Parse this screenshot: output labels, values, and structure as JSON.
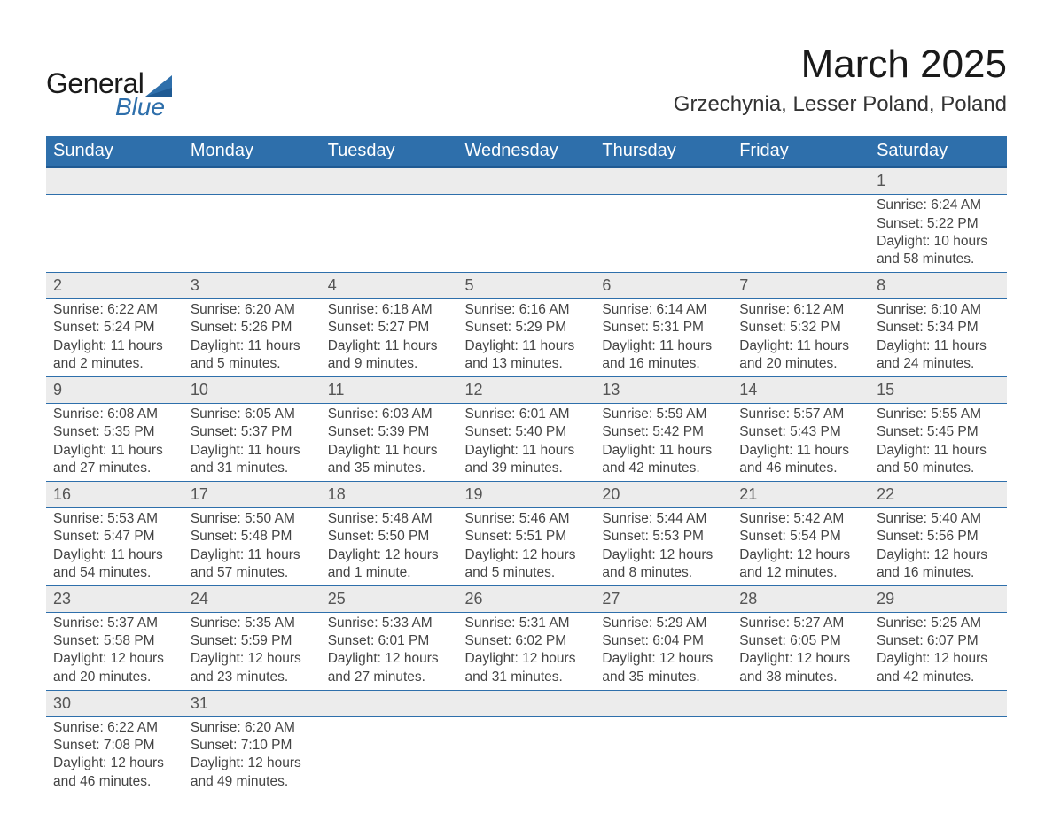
{
  "logo": {
    "word1": "General",
    "word2": "Blue",
    "sail_color": "#2e6fab",
    "text_color": "#1a1a1a"
  },
  "title": {
    "month": "March 2025",
    "location": "Grzechynia, Lesser Poland, Poland"
  },
  "colors": {
    "header_bg": "#2e6fab",
    "header_text": "#ffffff",
    "daynum_bg": "#ececec",
    "row_border": "#2e6fab",
    "body_text": "#444444"
  },
  "typography": {
    "month_fontsize": 44,
    "location_fontsize": 24,
    "dayheader_fontsize": 20,
    "daynum_fontsize": 18,
    "daytext_fontsize": 15.5
  },
  "calendar": {
    "day_headers": [
      "Sunday",
      "Monday",
      "Tuesday",
      "Wednesday",
      "Thursday",
      "Friday",
      "Saturday"
    ],
    "weeks": [
      [
        null,
        null,
        null,
        null,
        null,
        null,
        {
          "n": "1",
          "sunrise": "Sunrise: 6:24 AM",
          "sunset": "Sunset: 5:22 PM",
          "day1": "Daylight: 10 hours",
          "day2": "and 58 minutes."
        }
      ],
      [
        {
          "n": "2",
          "sunrise": "Sunrise: 6:22 AM",
          "sunset": "Sunset: 5:24 PM",
          "day1": "Daylight: 11 hours",
          "day2": "and 2 minutes."
        },
        {
          "n": "3",
          "sunrise": "Sunrise: 6:20 AM",
          "sunset": "Sunset: 5:26 PM",
          "day1": "Daylight: 11 hours",
          "day2": "and 5 minutes."
        },
        {
          "n": "4",
          "sunrise": "Sunrise: 6:18 AM",
          "sunset": "Sunset: 5:27 PM",
          "day1": "Daylight: 11 hours",
          "day2": "and 9 minutes."
        },
        {
          "n": "5",
          "sunrise": "Sunrise: 6:16 AM",
          "sunset": "Sunset: 5:29 PM",
          "day1": "Daylight: 11 hours",
          "day2": "and 13 minutes."
        },
        {
          "n": "6",
          "sunrise": "Sunrise: 6:14 AM",
          "sunset": "Sunset: 5:31 PM",
          "day1": "Daylight: 11 hours",
          "day2": "and 16 minutes."
        },
        {
          "n": "7",
          "sunrise": "Sunrise: 6:12 AM",
          "sunset": "Sunset: 5:32 PM",
          "day1": "Daylight: 11 hours",
          "day2": "and 20 minutes."
        },
        {
          "n": "8",
          "sunrise": "Sunrise: 6:10 AM",
          "sunset": "Sunset: 5:34 PM",
          "day1": "Daylight: 11 hours",
          "day2": "and 24 minutes."
        }
      ],
      [
        {
          "n": "9",
          "sunrise": "Sunrise: 6:08 AM",
          "sunset": "Sunset: 5:35 PM",
          "day1": "Daylight: 11 hours",
          "day2": "and 27 minutes."
        },
        {
          "n": "10",
          "sunrise": "Sunrise: 6:05 AM",
          "sunset": "Sunset: 5:37 PM",
          "day1": "Daylight: 11 hours",
          "day2": "and 31 minutes."
        },
        {
          "n": "11",
          "sunrise": "Sunrise: 6:03 AM",
          "sunset": "Sunset: 5:39 PM",
          "day1": "Daylight: 11 hours",
          "day2": "and 35 minutes."
        },
        {
          "n": "12",
          "sunrise": "Sunrise: 6:01 AM",
          "sunset": "Sunset: 5:40 PM",
          "day1": "Daylight: 11 hours",
          "day2": "and 39 minutes."
        },
        {
          "n": "13",
          "sunrise": "Sunrise: 5:59 AM",
          "sunset": "Sunset: 5:42 PM",
          "day1": "Daylight: 11 hours",
          "day2": "and 42 minutes."
        },
        {
          "n": "14",
          "sunrise": "Sunrise: 5:57 AM",
          "sunset": "Sunset: 5:43 PM",
          "day1": "Daylight: 11 hours",
          "day2": "and 46 minutes."
        },
        {
          "n": "15",
          "sunrise": "Sunrise: 5:55 AM",
          "sunset": "Sunset: 5:45 PM",
          "day1": "Daylight: 11 hours",
          "day2": "and 50 minutes."
        }
      ],
      [
        {
          "n": "16",
          "sunrise": "Sunrise: 5:53 AM",
          "sunset": "Sunset: 5:47 PM",
          "day1": "Daylight: 11 hours",
          "day2": "and 54 minutes."
        },
        {
          "n": "17",
          "sunrise": "Sunrise: 5:50 AM",
          "sunset": "Sunset: 5:48 PM",
          "day1": "Daylight: 11 hours",
          "day2": "and 57 minutes."
        },
        {
          "n": "18",
          "sunrise": "Sunrise: 5:48 AM",
          "sunset": "Sunset: 5:50 PM",
          "day1": "Daylight: 12 hours",
          "day2": "and 1 minute."
        },
        {
          "n": "19",
          "sunrise": "Sunrise: 5:46 AM",
          "sunset": "Sunset: 5:51 PM",
          "day1": "Daylight: 12 hours",
          "day2": "and 5 minutes."
        },
        {
          "n": "20",
          "sunrise": "Sunrise: 5:44 AM",
          "sunset": "Sunset: 5:53 PM",
          "day1": "Daylight: 12 hours",
          "day2": "and 8 minutes."
        },
        {
          "n": "21",
          "sunrise": "Sunrise: 5:42 AM",
          "sunset": "Sunset: 5:54 PM",
          "day1": "Daylight: 12 hours",
          "day2": "and 12 minutes."
        },
        {
          "n": "22",
          "sunrise": "Sunrise: 5:40 AM",
          "sunset": "Sunset: 5:56 PM",
          "day1": "Daylight: 12 hours",
          "day2": "and 16 minutes."
        }
      ],
      [
        {
          "n": "23",
          "sunrise": "Sunrise: 5:37 AM",
          "sunset": "Sunset: 5:58 PM",
          "day1": "Daylight: 12 hours",
          "day2": "and 20 minutes."
        },
        {
          "n": "24",
          "sunrise": "Sunrise: 5:35 AM",
          "sunset": "Sunset: 5:59 PM",
          "day1": "Daylight: 12 hours",
          "day2": "and 23 minutes."
        },
        {
          "n": "25",
          "sunrise": "Sunrise: 5:33 AM",
          "sunset": "Sunset: 6:01 PM",
          "day1": "Daylight: 12 hours",
          "day2": "and 27 minutes."
        },
        {
          "n": "26",
          "sunrise": "Sunrise: 5:31 AM",
          "sunset": "Sunset: 6:02 PM",
          "day1": "Daylight: 12 hours",
          "day2": "and 31 minutes."
        },
        {
          "n": "27",
          "sunrise": "Sunrise: 5:29 AM",
          "sunset": "Sunset: 6:04 PM",
          "day1": "Daylight: 12 hours",
          "day2": "and 35 minutes."
        },
        {
          "n": "28",
          "sunrise": "Sunrise: 5:27 AM",
          "sunset": "Sunset: 6:05 PM",
          "day1": "Daylight: 12 hours",
          "day2": "and 38 minutes."
        },
        {
          "n": "29",
          "sunrise": "Sunrise: 5:25 AM",
          "sunset": "Sunset: 6:07 PM",
          "day1": "Daylight: 12 hours",
          "day2": "and 42 minutes."
        }
      ],
      [
        {
          "n": "30",
          "sunrise": "Sunrise: 6:22 AM",
          "sunset": "Sunset: 7:08 PM",
          "day1": "Daylight: 12 hours",
          "day2": "and 46 minutes."
        },
        {
          "n": "31",
          "sunrise": "Sunrise: 6:20 AM",
          "sunset": "Sunset: 7:10 PM",
          "day1": "Daylight: 12 hours",
          "day2": "and 49 minutes."
        },
        null,
        null,
        null,
        null,
        null
      ]
    ]
  }
}
